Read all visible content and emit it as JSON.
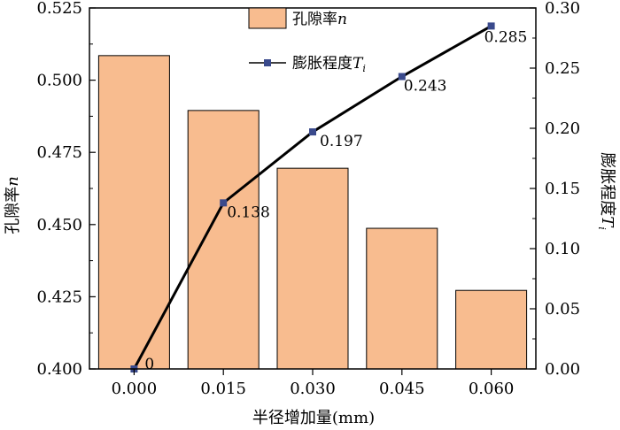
{
  "chart_data": {
    "type": "bar+line",
    "categories": [
      "0.000",
      "0.015",
      "0.030",
      "0.045",
      "0.060"
    ],
    "x": [
      0.0,
      0.015,
      0.03,
      0.045,
      0.06
    ],
    "xlabel": "半径增加量(mm)",
    "ylabel_left": "孔隙率n",
    "ylabel_right": "膨胀程度Ti",
    "ylim_left": [
      0.4,
      0.525
    ],
    "ylim_right": [
      0.0,
      0.3
    ],
    "left_ticks": [
      "0.400",
      "0.425",
      "0.450",
      "0.475",
      "0.500",
      "0.525"
    ],
    "right_ticks": [
      "0.00",
      "0.05",
      "0.10",
      "0.15",
      "0.20",
      "0.25",
      "0.30"
    ],
    "series": [
      {
        "name": "孔隙率n",
        "kind": "bar",
        "axis": "left",
        "color": "#F8BC8F",
        "values": [
          0.5085,
          0.4895,
          0.4695,
          0.4487,
          0.4272
        ]
      },
      {
        "name": "膨胀程度Ti",
        "kind": "line",
        "axis": "right",
        "color": "#000000",
        "marker_color": "#3A4A8C",
        "values": [
          0,
          0.138,
          0.197,
          0.243,
          0.285
        ],
        "labels": [
          "0",
          "0.138",
          "0.197",
          "0.243",
          "0.285"
        ]
      }
    ],
    "legend": {
      "position": "top-center",
      "bar_label_main": "孔隙率",
      "bar_label_italic": "n",
      "line_label_main": "膨胀程度",
      "line_label_italic": "T",
      "line_label_sub": "i"
    },
    "ylabel_left_parts": {
      "main": "孔隙率",
      "italic": "n"
    },
    "ylabel_right_parts": {
      "main": "膨胀程度",
      "italic": "T",
      "sub": "i"
    },
    "grid": false
  }
}
